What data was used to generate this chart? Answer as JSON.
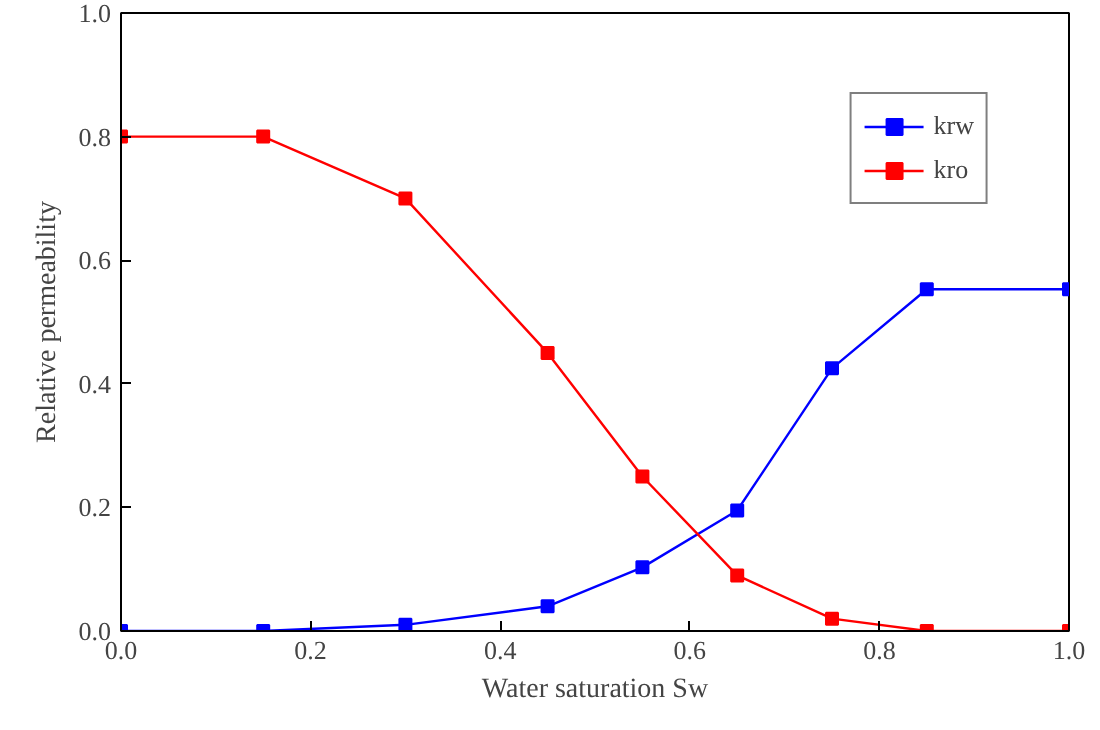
{
  "chart_data": {
    "type": "line",
    "xlabel": "Water saturation Sw",
    "ylabel": "Relative permeability",
    "x": [
      0,
      0.15,
      0.3,
      0.45,
      0.55,
      0.65,
      0.75,
      0.85,
      1.0
    ],
    "series": [
      {
        "name": "krw",
        "color": "#0000ff",
        "values": [
          0,
          0,
          0.01,
          0.04,
          0.103,
          0.195,
          0.425,
          0.553,
          0.553
        ]
      },
      {
        "name": "kro",
        "color": "#ff0000",
        "values": [
          0.8,
          0.8,
          0.7,
          0.45,
          0.25,
          0.09,
          0.02,
          0,
          0
        ]
      }
    ],
    "xlim": [
      0,
      1.0
    ],
    "ylim": [
      0,
      1.0
    ],
    "xticks": [
      {
        "value": 0,
        "label": "0.0"
      },
      0.2,
      0.4,
      0.6,
      0.8,
      {
        "value": 1.0,
        "label": "1.0"
      }
    ],
    "yticks": [
      {
        "value": 0,
        "label": "0.0"
      },
      0.2,
      0.4,
      0.6,
      0.8,
      {
        "value": 1.0,
        "label": "1.0"
      }
    ],
    "marker": "square",
    "line_style": "solid",
    "legend": "top right",
    "grid": false
  }
}
